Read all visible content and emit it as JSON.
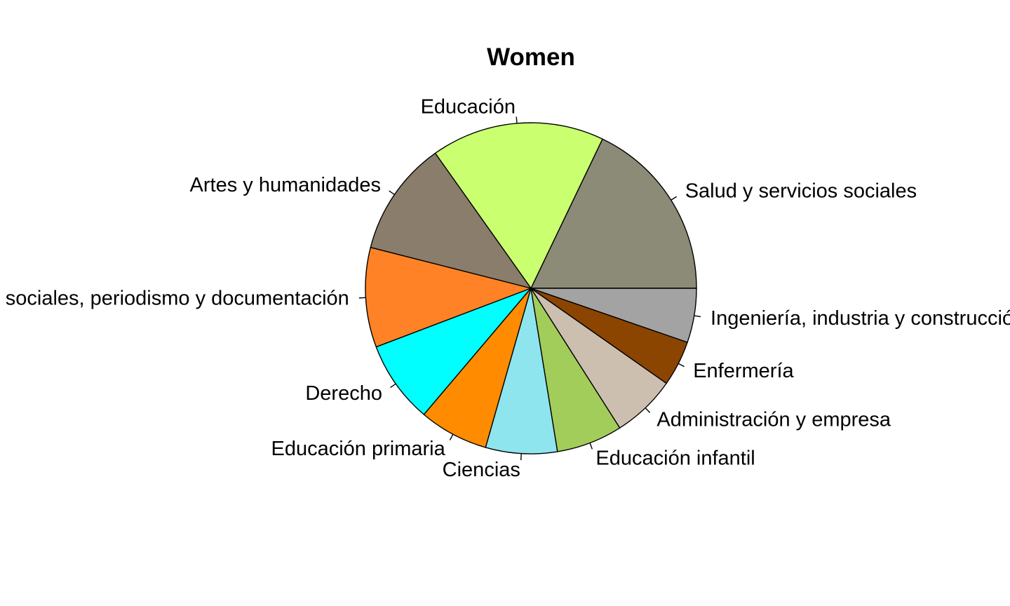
{
  "chart_data": {
    "type": "pie",
    "title": "Women",
    "direction": "counterclockwise",
    "start": "3 o'clock",
    "slices": [
      {
        "label": "Salud y servicios sociales",
        "value": 16.9,
        "color": "#8B8B78"
      },
      {
        "label": "Educación",
        "value": 16.0,
        "color": "#CAFF70"
      },
      {
        "label": "Artes y humanidades",
        "value": 10.6,
        "color": "#8B7D6B"
      },
      {
        "label": "Ciencias sociales, periodismo y documentación",
        "value": 9.2,
        "color": "#FF8326"
      },
      {
        "label": "Derecho",
        "value": 7.6,
        "color": "#00FFFF"
      },
      {
        "label": "Educación primaria",
        "value": 6.4,
        "color": "#FF8C00"
      },
      {
        "label": "Ciencias",
        "value": 6.6,
        "color": "#8EE5EE"
      },
      {
        "label": "Educación infantil",
        "value": 6.1,
        "color": "#A2CD5A"
      },
      {
        "label": "Administración y empresa",
        "value": 5.9,
        "color": "#CDBFB0"
      },
      {
        "label": "Enfermería",
        "value": 4.2,
        "color": "#8B4500"
      },
      {
        "label": "Ingeniería, industria y construcción",
        "value": 5.0,
        "color": "#A3A3A3"
      }
    ]
  }
}
